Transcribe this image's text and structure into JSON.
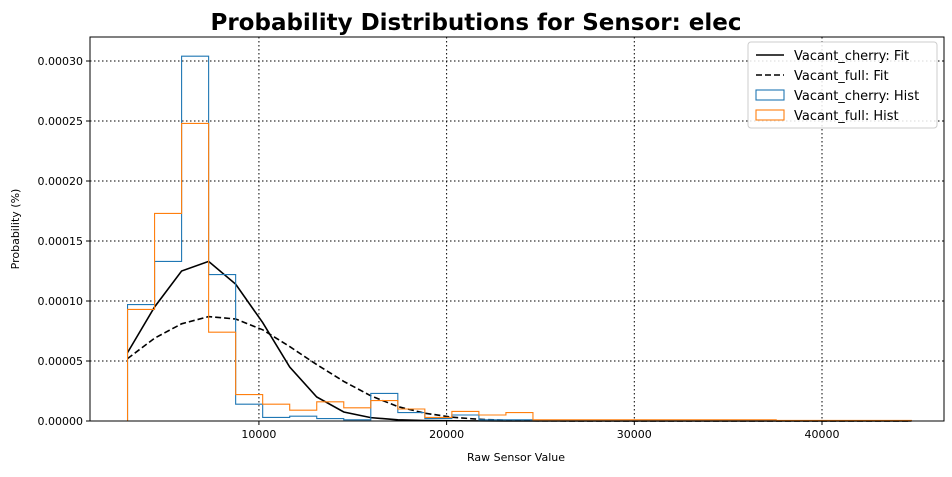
{
  "chart_data": {
    "type": "line",
    "title": "Probability Distributions for Sensor: elec",
    "xlabel": "Raw Sensor Value",
    "ylabel": "Probability (%)",
    "xlim": [
      1000,
      46500
    ],
    "ylim": [
      0,
      0.00032
    ],
    "grid": true,
    "legend_position": "top-right",
    "x_ticks": [
      {
        "value": 10000,
        "label": "10000"
      },
      {
        "value": 20000,
        "label": "20000"
      },
      {
        "value": 30000,
        "label": "30000"
      },
      {
        "value": 40000,
        "label": "40000"
      }
    ],
    "y_ticks": [
      {
        "value": 0,
        "label": "0.00000"
      },
      {
        "value": 5e-05,
        "label": "0.00005"
      },
      {
        "value": 0.0001,
        "label": "0.00010"
      },
      {
        "value": 0.00015,
        "label": "0.00015"
      },
      {
        "value": 0.0002,
        "label": "0.00020"
      },
      {
        "value": 0.00025,
        "label": "0.00025"
      },
      {
        "value": 0.0003,
        "label": "0.00030"
      }
    ],
    "series": [
      {
        "name": "Vacant_cherry: Fit",
        "kind": "line",
        "style": "solid",
        "color": "#000000",
        "x": [
          3000,
          4440,
          5880,
          7320,
          8760,
          10200,
          11640,
          13080,
          14520,
          15960,
          17400,
          18840,
          20280,
          21720,
          23160,
          24600,
          26040,
          27480,
          28920,
          30360,
          31800,
          33240,
          34680,
          36120,
          37560,
          39000,
          40440,
          41880,
          43320,
          44760
        ],
        "y": [
          5.7e-05,
          9.5e-05,
          0.000125,
          0.000133,
          0.000114,
          8.2e-05,
          4.5e-05,
          2e-05,
          7.5e-06,
          2.8e-06,
          1e-06,
          4e-07,
          2e-07,
          1e-07,
          0,
          0,
          0,
          0,
          0,
          0,
          0,
          0,
          0,
          0,
          0,
          0,
          0,
          0,
          0,
          0
        ]
      },
      {
        "name": "Vacant_full: Fit",
        "kind": "line",
        "style": "dashed",
        "color": "#000000",
        "x": [
          3000,
          4440,
          5880,
          7320,
          8760,
          10200,
          11640,
          13080,
          14520,
          15960,
          17400,
          18840,
          20280,
          21720,
          23160,
          24600,
          26040,
          27480,
          28920,
          30360,
          31800,
          33240,
          34680,
          36120,
          37560,
          39000,
          40440,
          41880,
          43320,
          44760
        ],
        "y": [
          5.2e-05,
          6.9e-05,
          8.1e-05,
          8.7e-05,
          8.5e-05,
          7.6e-05,
          6.2e-05,
          4.7e-05,
          3.3e-05,
          2.1e-05,
          1.2e-05,
          6.5e-06,
          3.2e-06,
          1.4e-06,
          6e-07,
          2e-07,
          1e-07,
          0,
          0,
          0,
          0,
          0,
          0,
          0,
          0,
          0,
          0,
          0,
          0,
          0
        ]
      },
      {
        "name": "Vacant_cherry: Hist",
        "kind": "step",
        "color": "#1f77b4",
        "edges": [
          3000,
          4440,
          5880,
          7320,
          8760,
          10200,
          11640,
          13080,
          14520,
          15960,
          17400,
          18840,
          20280,
          21720,
          23160,
          24600,
          26040,
          27480,
          28920,
          30360,
          31800,
          33240,
          34680,
          36120,
          37560,
          39000,
          40440,
          41880,
          43320,
          44760
        ],
        "values": [
          9.7e-05,
          0.000133,
          0.000304,
          0.000122,
          1.4e-05,
          3e-06,
          4e-06,
          2e-06,
          1e-06,
          2.3e-05,
          7e-06,
          2e-06,
          5e-06,
          1e-06,
          1e-06,
          5e-07,
          5e-07,
          5e-07,
          5e-07,
          3e-07,
          5e-07,
          3e-07,
          3e-07,
          3e-07,
          3e-07,
          3e-07,
          3e-07,
          3e-07,
          3e-07
        ]
      },
      {
        "name": "Vacant_full: Hist",
        "kind": "step",
        "color": "#ff7f0e",
        "edges": [
          3000,
          4440,
          5880,
          7320,
          8760,
          10200,
          11640,
          13080,
          14520,
          15960,
          17400,
          18840,
          20280,
          21720,
          23160,
          24600,
          26040,
          27480,
          28920,
          30360,
          31800,
          33240,
          34680,
          36120,
          37560,
          39000,
          40440,
          41880,
          43320,
          44760
        ],
        "values": [
          9.3e-05,
          0.000173,
          0.000248,
          7.4e-05,
          2.2e-05,
          1.4e-05,
          9e-06,
          1.6e-05,
          1.1e-05,
          1.7e-05,
          1e-05,
          3e-06,
          8e-06,
          5e-06,
          7e-06,
          1e-06,
          1e-06,
          1e-06,
          1e-06,
          1e-06,
          1e-06,
          1e-06,
          1e-06,
          1e-06,
          5e-07,
          5e-07,
          5e-07,
          5e-07,
          5e-07
        ]
      }
    ]
  }
}
